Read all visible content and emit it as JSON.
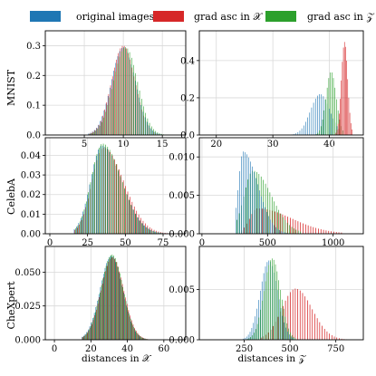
{
  "colors": {
    "original": "#1f77b4",
    "grad_x": "#d62728",
    "grad_z": "#2ca02c",
    "grid": "#d9d9d9"
  },
  "legend": {
    "placement": "top",
    "items": [
      {
        "label": "original images",
        "color": "#1f77b4"
      },
      {
        "label": "grad asc in 𝒳",
        "color": "#d62728"
      },
      {
        "label": "grad asc in 𝒵",
        "color": "#2ca02c"
      }
    ]
  },
  "row_labels": [
    "MNIST",
    "CelebA",
    "CheXpert"
  ],
  "col_labels": [
    "distances in 𝒳",
    "distances in 𝒵"
  ],
  "chart_data": [
    {
      "type": "bar",
      "dataset": "MNIST",
      "space": "X",
      "xlim": [
        0,
        18
      ],
      "ylim": [
        0,
        0.35
      ],
      "xticks": [
        5,
        10,
        15
      ],
      "yticks": [
        0.0,
        0.1,
        0.2,
        0.3
      ],
      "ytick_labels": [
        "0.0",
        "0.1",
        "0.2",
        "0.3"
      ],
      "grid": true,
      "series": [
        {
          "key": "original",
          "dist": "gauss",
          "mu": 10.1,
          "sd": 1.55,
          "peak": 0.295,
          "range": [
            5.5,
            15.0
          ],
          "bins": 38
        },
        {
          "key": "grad_x",
          "dist": "gauss",
          "mu": 10.0,
          "sd": 1.5,
          "peak": 0.3,
          "range": [
            5.5,
            15.0
          ],
          "bins": 38
        },
        {
          "key": "grad_z",
          "dist": "gauss",
          "mu": 10.2,
          "sd": 1.55,
          "peak": 0.295,
          "range": [
            5.5,
            15.2
          ],
          "bins": 38
        }
      ]
    },
    {
      "type": "bar",
      "dataset": "MNIST",
      "space": "Z",
      "xlim": [
        17,
        46
      ],
      "ylim": [
        0,
        0.56
      ],
      "xticks": [
        20,
        30,
        40
      ],
      "yticks": [
        0.0,
        0.2,
        0.4
      ],
      "ytick_labels": [
        "0.0",
        "0.2",
        "0.4"
      ],
      "grid": true,
      "series": [
        {
          "key": "original",
          "dist": "gauss",
          "mu": 38.5,
          "sd": 1.7,
          "peak": 0.22,
          "range": [
            33.0,
            42.0
          ],
          "bins": 26
        },
        {
          "key": "grad_z",
          "dist": "gauss",
          "mu": 40.3,
          "sd": 0.9,
          "peak": 0.34,
          "range": [
            37.0,
            42.5
          ],
          "bins": 20
        },
        {
          "key": "grad_x",
          "dist": "gauss",
          "mu": 42.6,
          "sd": 0.55,
          "peak": 0.5,
          "range": [
            41.0,
            44.0
          ],
          "bins": 16
        }
      ]
    },
    {
      "type": "bar",
      "dataset": "CelebA",
      "space": "X",
      "xlim": [
        -3,
        90
      ],
      "ylim": [
        0,
        0.049
      ],
      "xticks": [
        0,
        25,
        50,
        75
      ],
      "yticks": [
        0.0,
        0.01,
        0.02,
        0.03,
        0.04
      ],
      "ytick_labels": [
        "0.00",
        "0.01",
        "0.02",
        "0.03",
        "0.04"
      ],
      "grid": true,
      "series": [
        {
          "key": "original",
          "dist": "skew",
          "mu": 35,
          "sdl": 7.5,
          "sdr": 13,
          "peak": 0.045,
          "range": [
            16,
            80
          ],
          "bins": 44
        },
        {
          "key": "grad_x",
          "dist": "skew",
          "mu": 35.5,
          "sdl": 7.5,
          "sdr": 13.5,
          "peak": 0.044,
          "range": [
            16,
            80
          ],
          "bins": 44
        },
        {
          "key": "grad_z",
          "dist": "skew",
          "mu": 34.5,
          "sdl": 7.5,
          "sdr": 12.5,
          "peak": 0.046,
          "range": [
            16,
            78
          ],
          "bins": 44
        }
      ]
    },
    {
      "type": "bar",
      "dataset": "CelebA",
      "space": "Z",
      "xlim": [
        -20,
        1230
      ],
      "ylim": [
        0,
        0.0125
      ],
      "xticks": [
        0,
        500,
        1000
      ],
      "yticks": [
        0.0,
        0.005,
        0.01
      ],
      "ytick_labels": [
        "0.000",
        "0.005",
        "0.010"
      ],
      "grid": true,
      "series": [
        {
          "key": "grad_x",
          "dist": "skew",
          "mu": 430,
          "sdl": 60,
          "sdr": 260,
          "peak": 0.0033,
          "range": [
            300,
            1080
          ],
          "bins": 40
        },
        {
          "key": "grad_z",
          "dist": "skew",
          "mu": 390,
          "sdl": 70,
          "sdr": 140,
          "peak": 0.0082,
          "range": [
            260,
            760
          ],
          "bins": 30
        },
        {
          "key": "original",
          "dist": "skew",
          "mu": 310,
          "sdl": 35,
          "sdr": 110,
          "peak": 0.0107,
          "range": [
            250,
            660
          ],
          "bins": 30
        }
      ]
    },
    {
      "type": "bar",
      "dataset": "CheXpert",
      "space": "X",
      "xlim": [
        -5,
        72
      ],
      "ylim": [
        0,
        0.069
      ],
      "xticks": [
        0,
        20,
        40,
        60
      ],
      "yticks": [
        0.0,
        0.025,
        0.05
      ],
      "ytick_labels": [
        "0.000",
        "0.025",
        "0.050"
      ],
      "grid": true,
      "series": [
        {
          "key": "original",
          "dist": "gauss",
          "mu": 31.5,
          "sd": 6.2,
          "peak": 0.062,
          "range": [
            15,
            52
          ],
          "bins": 44
        },
        {
          "key": "grad_x",
          "dist": "gauss",
          "mu": 31.8,
          "sd": 6.2,
          "peak": 0.061,
          "range": [
            15,
            52
          ],
          "bins": 44
        },
        {
          "key": "grad_z",
          "dist": "gauss",
          "mu": 31.3,
          "sd": 6.1,
          "peak": 0.063,
          "range": [
            15,
            52
          ],
          "bins": 44
        }
      ]
    },
    {
      "type": "bar",
      "dataset": "CheXpert",
      "space": "Z",
      "xlim": [
        5,
        900
      ],
      "ylim": [
        0,
        0.0093
      ],
      "xticks": [
        250,
        500,
        750
      ],
      "yticks": [
        0.0,
        0.005
      ],
      "ytick_labels": [
        "0.000",
        "0.005"
      ],
      "grid": true,
      "series": [
        {
          "key": "grad_x",
          "dist": "skew",
          "mu": 535,
          "sdl": 75,
          "sdr": 90,
          "peak": 0.0051,
          "range": [
            340,
            820
          ],
          "bins": 36
        },
        {
          "key": "original",
          "dist": "gauss",
          "mu": 385,
          "sd": 48,
          "peak": 0.0079,
          "range": [
            240,
            520
          ],
          "bins": 30
        },
        {
          "key": "grad_z",
          "dist": "gauss",
          "mu": 400,
          "sd": 45,
          "peak": 0.0081,
          "range": [
            260,
            530
          ],
          "bins": 30
        }
      ]
    }
  ]
}
